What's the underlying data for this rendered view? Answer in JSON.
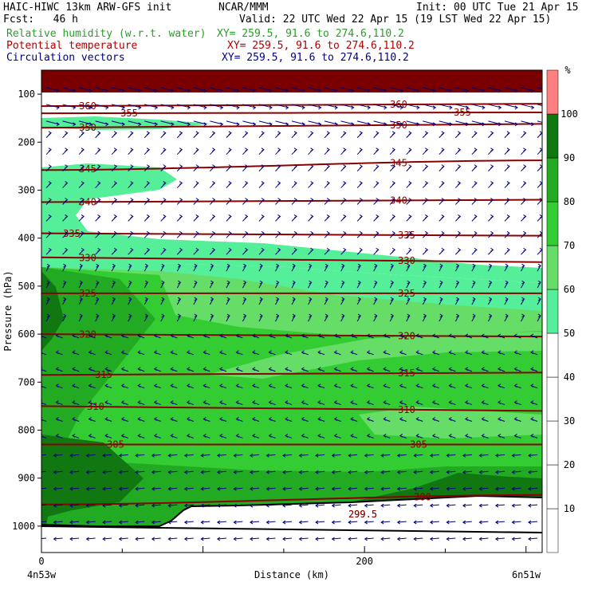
{
  "header": {
    "title": "HAIC-HIWC 13km ARW-GFS init",
    "org": "NCAR/MMM",
    "init": "Init: 00 UTC Tue 21 Apr 15",
    "fcst": "Fcst:   46 h",
    "valid": "Valid: 22 UTC Wed 22 Apr 15 (19 LST Wed 22 Apr 15)",
    "rh_label": "Relative humidity (w.r.t. water)",
    "rh_xy": "XY= 259.5, 91.6 to 274.6,110.2",
    "theta_label": "Potential temperature",
    "theta_xy": "XY= 259.5, 91.6 to 274.6,110.2",
    "circ_label": "Circulation vectors",
    "circ_xy": "XY= 259.5, 91.6 to 274.6,110.2"
  },
  "colors": {
    "terrain": "#7a0000",
    "theta_line": "#8b0000",
    "theta_label": "#8b0000",
    "vector": "#000080",
    "rh_40_50": "#ffffff",
    "rh_50_60": "#55ee99",
    "rh_60_70": "#66dd66",
    "rh_70_80": "#33cc33",
    "rh_80_90": "#22aa22",
    "rh_90_100": "#117711",
    "rh_100_plus": "#ff8080"
  },
  "chart_data": {
    "type": "cross-section",
    "ylabel": "Pressure (hPa)",
    "xlabel": "Distance (km)",
    "x_ticks": [
      "0",
      "200"
    ],
    "y_ticks": [
      "100",
      "200",
      "300",
      "400",
      "500",
      "600",
      "700",
      "800",
      "900",
      "1000"
    ],
    "x_endpoints": {
      "left": "4n53w",
      "right": "6n51w"
    },
    "colorbar": {
      "unit": "%",
      "ticks": [
        "10",
        "20",
        "30",
        "40",
        "50",
        "60",
        "70",
        "80",
        "90",
        "100"
      ],
      "levels": [
        0,
        10,
        20,
        30,
        40,
        50,
        60,
        70,
        80,
        90,
        100,
        110
      ]
    },
    "theta_contours": [
      {
        "value": "360",
        "p_left": 125,
        "p_right": 120
      },
      {
        "value": "355",
        "p_left": 140,
        "p_right": 138
      },
      {
        "value": "350",
        "p_left": 170,
        "p_right": 162
      },
      {
        "value": "345",
        "p_left": 258,
        "p_right": 238
      },
      {
        "value": "340",
        "p_left": 325,
        "p_right": 320
      },
      {
        "value": "335",
        "p_left": 390,
        "p_right": 395
      },
      {
        "value": "330",
        "p_left": 440,
        "p_right": 450
      },
      {
        "value": "325",
        "p_left": 515,
        "p_right": 515
      },
      {
        "value": "320",
        "p_left": 600,
        "p_right": 605
      },
      {
        "value": "315",
        "p_left": 685,
        "p_right": 680
      },
      {
        "value": "310",
        "p_left": 750,
        "p_right": 760
      },
      {
        "value": "305",
        "p_left": 830,
        "p_right": 830
      },
      {
        "value": "300",
        "p_left": 955,
        "p_right": 935
      },
      {
        "value": "299.5",
        "p_left": 975,
        "p_right": 975
      }
    ],
    "vector_field": "Circulation vectors"
  }
}
